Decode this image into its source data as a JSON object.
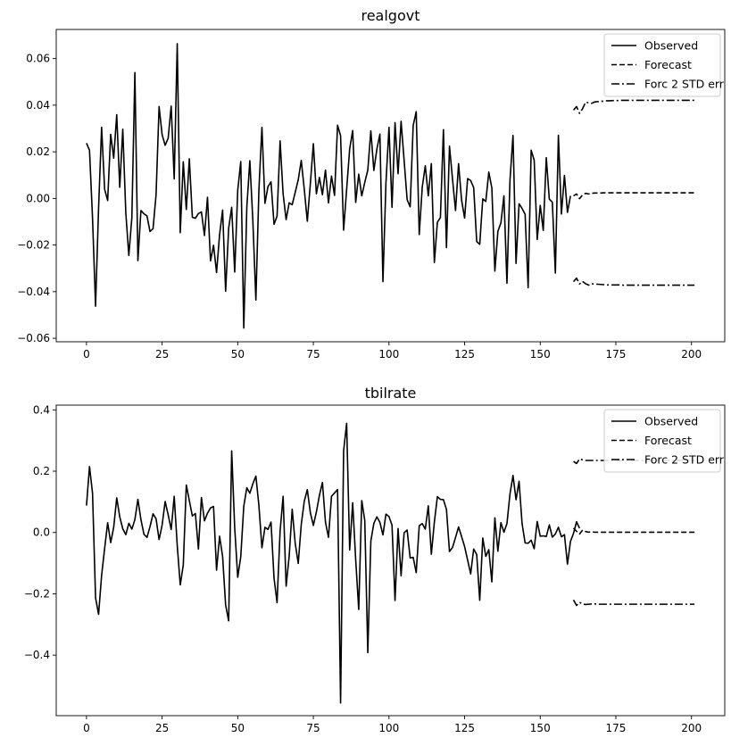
{
  "chart_data": [
    {
      "type": "line",
      "title": "realgovt",
      "xlabel": "",
      "ylabel": "",
      "xlim": [
        -10,
        211
      ],
      "ylim": [
        -0.0615,
        0.0725
      ],
      "xticks": [
        0,
        25,
        50,
        75,
        100,
        125,
        150,
        175,
        200
      ],
      "xtick_labels": [
        "0",
        "25",
        "50",
        "75",
        "100",
        "125",
        "150",
        "175",
        "200"
      ],
      "yticks": [
        -0.06,
        -0.04,
        -0.02,
        0.0,
        0.02,
        0.04,
        0.06
      ],
      "ytick_labels": [
        "−0.06",
        "−0.04",
        "−0.02",
        "0.00",
        "0.02",
        "0.04",
        "0.06"
      ],
      "legend_position": "top-right",
      "grid": false,
      "series": [
        {
          "name": "Observed",
          "style": "solid",
          "color": "#000000",
          "x_start": 0,
          "values": [
            0.0237,
            0.0207,
            -0.0085,
            -0.0462,
            -0.0041,
            0.0305,
            0.0039,
            -0.0009,
            0.0275,
            0.0173,
            0.0359,
            0.0048,
            0.0297,
            -0.0062,
            -0.0245,
            -0.0082,
            0.054,
            -0.0267,
            -0.0052,
            -0.0066,
            -0.0075,
            -0.0142,
            -0.013,
            0.0015,
            0.0394,
            0.0274,
            0.0228,
            0.0258,
            0.0396,
            0.0084,
            0.0664,
            -0.0147,
            0.0157,
            -0.0047,
            0.017,
            -0.0081,
            -0.0085,
            -0.0065,
            -0.0058,
            -0.0159,
            0.0005,
            -0.0268,
            -0.0201,
            -0.0318,
            -0.0156,
            -0.005,
            -0.0398,
            -0.0128,
            -0.0038,
            -0.0316,
            0.0035,
            0.0158,
            -0.0556,
            -0.0038,
            0.0162,
            -0.0095,
            -0.0436,
            0.0037,
            0.0305,
            -0.0021,
            0.0051,
            0.0071,
            -0.0111,
            -0.0076,
            0.0247,
            0.0019,
            -0.0091,
            -0.0019,
            -0.0027,
            0.0026,
            0.008,
            0.0163,
            0.0039,
            -0.0098,
            0.0062,
            0.0235,
            0.002,
            0.009,
            0.0016,
            0.0122,
            -0.0019,
            0.0096,
            0.0013,
            0.0314,
            0.0269,
            -0.0136,
            0.0038,
            0.0212,
            0.0291,
            -0.0017,
            0.0104,
            0.0011,
            0.0069,
            0.0122,
            0.029,
            0.012,
            0.0212,
            0.0276,
            -0.0357,
            0.0068,
            0.0305,
            -0.0038,
            0.0325,
            0.0106,
            0.0331,
            0.0164,
            -0.0005,
            -0.0036,
            0.0313,
            0.0372,
            -0.0155,
            0.0049,
            0.014,
            0.0011,
            0.0149,
            -0.0275,
            -0.0102,
            -0.0082,
            0.0295,
            -0.0211,
            0.0224,
            0.0083,
            -0.0052,
            0.0149,
            -0.0007,
            -0.0084,
            0.0085,
            0.0077,
            0.0046,
            -0.0185,
            -0.0197,
            -0.0002,
            -0.0013,
            0.0113,
            0.0045,
            -0.0312,
            -0.0141,
            -0.0105,
            0.0011,
            -0.0364,
            0.0078,
            0.027,
            -0.0279,
            -0.0023,
            -0.0043,
            -0.0068,
            -0.0383,
            0.0207,
            0.0164,
            -0.0176,
            -0.003,
            -0.0137,
            0.0175,
            -0.0003,
            -0.0016,
            -0.032,
            0.0271,
            -0.0067,
            0.0099,
            -0.006,
            0.0011
          ]
        },
        {
          "name": "Forecast",
          "style": "dashed",
          "color": "#000000",
          "x_start": 161,
          "values": [
            0.0011,
            0.0019,
            -0.0001,
            0.0015,
            0.0022,
            0.0019,
            0.0022,
            0.0023,
            0.0023,
            0.0023,
            0.0024,
            0.0024,
            0.0024,
            0.0024,
            0.0024,
            0.0024,
            0.0024,
            0.0024,
            0.0024,
            0.0024,
            0.0024,
            0.0024,
            0.0024,
            0.0024,
            0.0024,
            0.0024,
            0.0024,
            0.0024,
            0.0024,
            0.0024,
            0.0024,
            0.0024,
            0.0024,
            0.0024,
            0.0024,
            0.0024,
            0.0024,
            0.0024,
            0.0024,
            0.0024,
            0.0024
          ]
        },
        {
          "name": "Forc 2 STD err",
          "style": "dashdot",
          "color": "#000000",
          "x_start": 161,
          "upper": [
            0.0379,
            0.0394,
            0.0365,
            0.0385,
            0.0413,
            0.041,
            0.0408,
            0.0414,
            0.0415,
            0.0416,
            0.0418,
            0.0419,
            0.0419,
            0.042,
            0.042,
            0.042,
            0.0421,
            0.0421,
            0.0421,
            0.0421,
            0.0421,
            0.0421,
            0.0421,
            0.0421,
            0.0421,
            0.0421,
            0.0421,
            0.0421,
            0.0421,
            0.0421,
            0.0421,
            0.0421,
            0.0421,
            0.0421,
            0.0421,
            0.0421,
            0.0421,
            0.0421,
            0.0421,
            0.0421,
            0.0421
          ],
          "lower": [
            -0.0357,
            -0.0342,
            -0.0367,
            -0.0356,
            -0.0366,
            -0.0372,
            -0.0366,
            -0.0368,
            -0.0368,
            -0.0369,
            -0.037,
            -0.0371,
            -0.0371,
            -0.0371,
            -0.0371,
            -0.0371,
            -0.0372,
            -0.0372,
            -0.0372,
            -0.0372,
            -0.0372,
            -0.0372,
            -0.0372,
            -0.0372,
            -0.0372,
            -0.0372,
            -0.0372,
            -0.0372,
            -0.0372,
            -0.0372,
            -0.0372,
            -0.0372,
            -0.0372,
            -0.0372,
            -0.0372,
            -0.0372,
            -0.0372,
            -0.0372,
            -0.0372,
            -0.0372,
            -0.0372
          ]
        }
      ]
    },
    {
      "type": "line",
      "title": "tbilrate",
      "xlabel": "",
      "ylabel": "",
      "xlim": [
        -10,
        211
      ],
      "ylim": [
        -0.5975,
        0.4155
      ],
      "xticks": [
        0,
        25,
        50,
        75,
        100,
        125,
        150,
        175,
        200
      ],
      "xtick_labels": [
        "0",
        "25",
        "50",
        "75",
        "100",
        "125",
        "150",
        "175",
        "200"
      ],
      "yticks": [
        -0.4,
        -0.2,
        0.0,
        0.2,
        0.4
      ],
      "ytick_labels": [
        "−0.4",
        "−0.2",
        "0.0",
        "0.2",
        "0.4"
      ],
      "legend_position": "top-right",
      "grid": false,
      "series": [
        {
          "name": "Observed",
          "style": "solid",
          "color": "#000000",
          "x_start": 0,
          "values": [
            0.088,
            0.215,
            0.128,
            -0.213,
            -0.267,
            -0.14,
            -0.052,
            0.032,
            -0.033,
            0.017,
            0.113,
            0.051,
            0.012,
            -0.007,
            0.03,
            0.011,
            0.042,
            0.108,
            0.042,
            -0.006,
            -0.016,
            0.019,
            0.061,
            0.045,
            -0.023,
            0.024,
            0.101,
            0.058,
            0.01,
            0.118,
            -0.042,
            -0.171,
            -0.106,
            0.155,
            0.104,
            0.054,
            0.062,
            -0.054,
            0.114,
            0.038,
            0.063,
            0.08,
            0.085,
            -0.123,
            -0.012,
            -0.078,
            -0.237,
            -0.288,
            0.266,
            0.015,
            -0.146,
            -0.079,
            0.086,
            0.146,
            0.128,
            0.159,
            0.184,
            0.088,
            -0.05,
            0.017,
            0.01,
            0.034,
            -0.149,
            -0.229,
            0.004,
            0.118,
            -0.175,
            -0.078,
            0.076,
            -0.035,
            -0.101,
            0.026,
            0.102,
            0.14,
            0.065,
            0.023,
            0.067,
            0.121,
            0.163,
            0.034,
            -0.016,
            0.118,
            0.129,
            0.14,
            -0.556,
            0.266,
            0.356,
            -0.057,
            0.097,
            -0.089,
            -0.251,
            0.104,
            0.039,
            -0.392,
            -0.028,
            0.03,
            0.051,
            0.033,
            -0.008,
            0.06,
            0.052,
            0.024,
            -0.222,
            0.013,
            -0.141,
            -0.001,
            0.008,
            -0.083,
            -0.081,
            -0.131,
            0.022,
            0.029,
            0.011,
            0.087,
            -0.071,
            0.034,
            0.117,
            0.108,
            0.107,
            0.075,
            -0.062,
            -0.049,
            -0.016,
            0.018,
            -0.013,
            -0.046,
            -0.09,
            -0.135,
            -0.054,
            -0.072,
            -0.221,
            -0.018,
            -0.078,
            -0.056,
            -0.161,
            0.048,
            -0.061,
            0.032,
            0.001,
            0.029,
            0.126,
            0.186,
            0.107,
            0.167,
            0.029,
            -0.034,
            -0.035,
            -0.025,
            -0.053,
            0.036,
            -0.012,
            -0.011,
            -0.013,
            0.025,
            -0.015,
            -0.005,
            0.017,
            -0.014,
            -0.007,
            -0.103,
            -0.029,
            -0.003,
            0.035,
            0.014
          ]
        },
        {
          "name": "Forecast",
          "style": "dashed",
          "color": "#000000",
          "x_start": 161,
          "values": [
            0.014,
            0.004,
            -0.005,
            0.008,
            0.003,
            0.001,
            0.002,
            0.001,
            0.001,
            0.001,
            0.001,
            0.001,
            0.001,
            0.001,
            0.001,
            0.001,
            0.001,
            0.001,
            0.001,
            0.001,
            0.001,
            0.001,
            0.001,
            0.001,
            0.001,
            0.001,
            0.001,
            0.001,
            0.001,
            0.001,
            0.001,
            0.001,
            0.001,
            0.001,
            0.001,
            0.001,
            0.001,
            0.001,
            0.001,
            0.001,
            0.001
          ]
        },
        {
          "name": "Forc 2 STD err",
          "style": "dashdot",
          "color": "#000000",
          "x_start": 161,
          "upper": [
            0.232,
            0.225,
            0.24,
            0.237,
            0.235,
            0.235,
            0.235,
            0.235,
            0.235,
            0.235,
            0.235,
            0.235,
            0.235,
            0.235,
            0.235,
            0.235,
            0.235,
            0.235,
            0.235,
            0.235,
            0.235,
            0.235,
            0.235,
            0.235,
            0.235,
            0.235,
            0.235,
            0.235,
            0.235,
            0.235,
            0.235,
            0.235,
            0.235,
            0.235,
            0.235,
            0.235,
            0.235,
            0.235,
            0.235,
            0.235,
            0.235
          ],
          "lower": [
            -0.22,
            -0.238,
            -0.228,
            -0.233,
            -0.235,
            -0.234,
            -0.233,
            -0.233,
            -0.234,
            -0.234,
            -0.234,
            -0.234,
            -0.234,
            -0.234,
            -0.234,
            -0.234,
            -0.234,
            -0.234,
            -0.234,
            -0.234,
            -0.234,
            -0.234,
            -0.234,
            -0.234,
            -0.234,
            -0.234,
            -0.234,
            -0.234,
            -0.234,
            -0.234,
            -0.234,
            -0.234,
            -0.234,
            -0.234,
            -0.234,
            -0.234,
            -0.234,
            -0.234,
            -0.234,
            -0.234,
            -0.234
          ]
        }
      ]
    }
  ]
}
